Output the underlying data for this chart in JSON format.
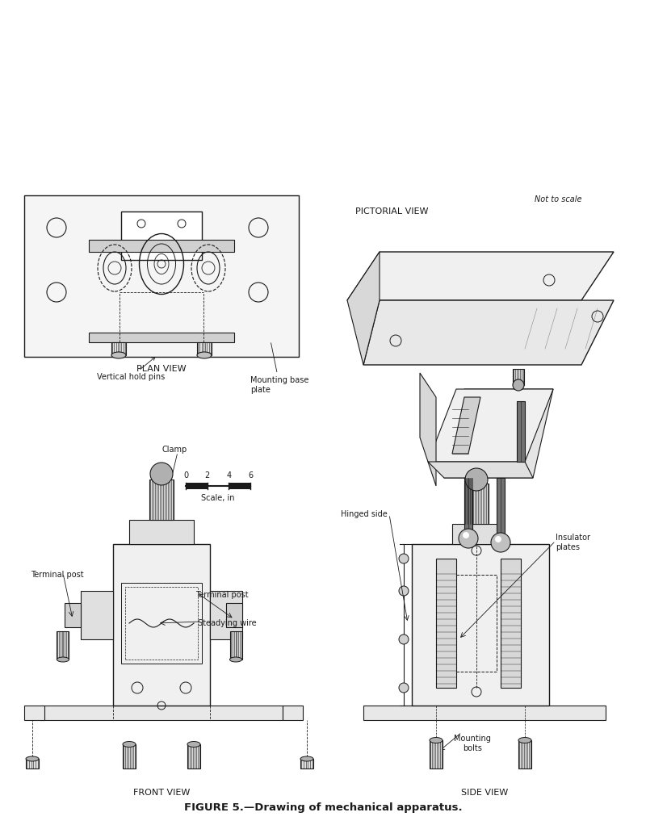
{
  "title": "FIGURE 5.—Drawing of mechanical apparatus.",
  "title_fontsize": 10,
  "bg_color": "#ffffff",
  "line_color": "#1a1a1a",
  "labels": {
    "plan_view": "PLAN VIEW",
    "pictorial_view": "PICTORIAL VIEW",
    "front_view": "FRONT VIEW",
    "side_view": "SIDE VIEW",
    "not_to_scale": "Not to scale",
    "vertical_hold_pins": "Vertical hold pins",
    "mounting_base_plate": "Mounting base\nplate",
    "clamp": "Clamp",
    "steadying_wire": "Steadying wire",
    "terminal_post_left": "Terminal post",
    "terminal_post_right": "Terminal post",
    "hinged_side": "Hinged side",
    "insulator_plates": "Insulator\nplates",
    "mounting_bolts": "Mounting\nbolts",
    "scale_label": "Scale, in"
  },
  "scale_ticks": [
    0,
    2,
    4,
    6
  ]
}
